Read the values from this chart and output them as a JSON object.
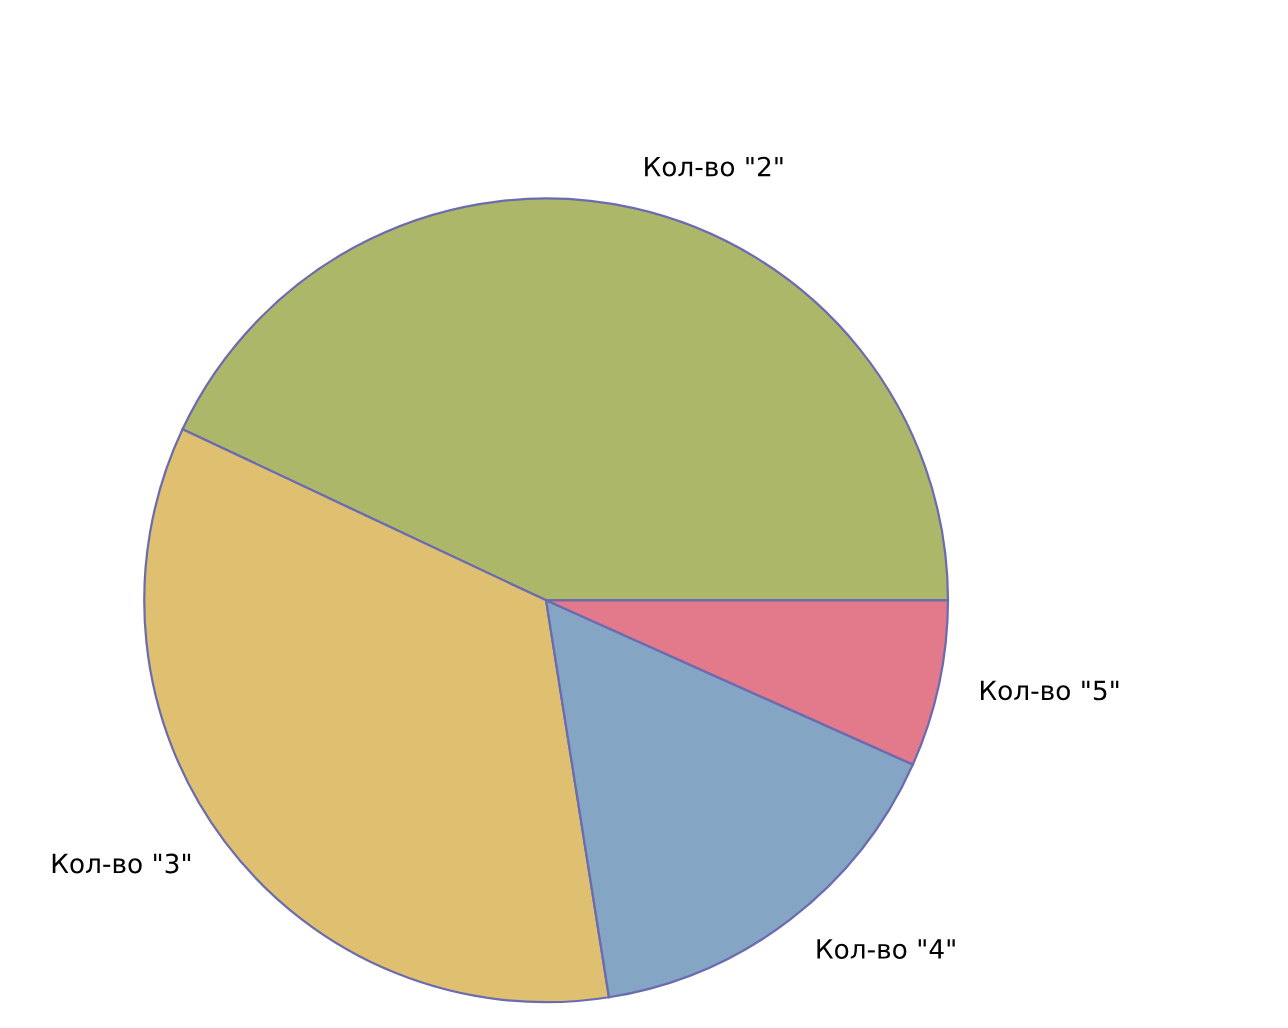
{
  "chart_data": {
    "type": "pie",
    "categories": [
      "Кол-во \"2\"",
      "Кол-во \"3\"",
      "Кол-во \"4\"",
      "Кол-во \"5\""
    ],
    "values": [
      43,
      34.5,
      15.8,
      6.7
    ],
    "colors": [
      "#adb76a",
      "#dfc070",
      "#85a5c5",
      "#e27a8b"
    ],
    "legend": false
  }
}
